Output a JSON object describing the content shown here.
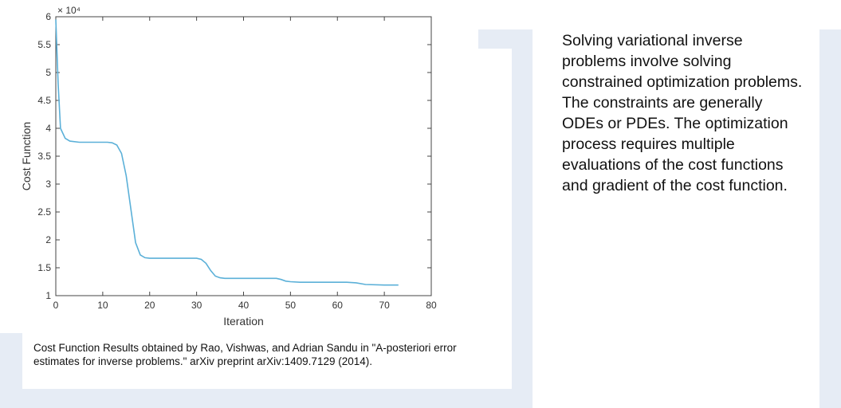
{
  "caption": "Cost Function Results obtained by Rao, Vishwas, and Adrian Sandu in \"A-posteriori error estimates for inverse problems.\" arXiv preprint arXiv:1409.7129 (2014).",
  "side_text": "Solving variational inverse problems involve solving constrained optimization problems. The constraints are generally ODEs or PDEs. The optimization process requires multiple evaluations of the cost functions and gradient of the cost function.",
  "colors": {
    "line": "#5bb0d8",
    "decoration": "#e6ecf5"
  },
  "chart_data": {
    "type": "line",
    "xlabel": "Iteration",
    "ylabel": "Cost Function",
    "exponent_label": "× 10⁴",
    "xlim": [
      0,
      80
    ],
    "ylim": [
      1,
      6
    ],
    "xticks": [
      0,
      10,
      20,
      30,
      40,
      50,
      60,
      70,
      80
    ],
    "yticks": [
      1,
      1.5,
      2,
      2.5,
      3,
      3.5,
      4,
      4.5,
      5,
      5.5,
      6
    ],
    "grid": false,
    "series": [
      {
        "x": [
          0,
          0.5,
          1,
          2,
          3,
          5,
          8,
          11,
          12,
          13,
          14,
          15,
          16,
          17,
          18,
          19,
          20,
          22,
          25,
          28,
          30,
          31,
          32,
          33,
          34,
          35,
          36,
          40,
          45,
          47,
          48,
          49,
          50,
          52,
          55,
          60,
          62,
          64,
          66,
          70,
          73
        ],
        "y": [
          5.95,
          4.8,
          4.0,
          3.82,
          3.77,
          3.75,
          3.75,
          3.75,
          3.74,
          3.7,
          3.55,
          3.15,
          2.55,
          1.95,
          1.73,
          1.68,
          1.67,
          1.67,
          1.67,
          1.67,
          1.67,
          1.65,
          1.58,
          1.45,
          1.35,
          1.32,
          1.31,
          1.31,
          1.31,
          1.31,
          1.29,
          1.26,
          1.25,
          1.24,
          1.24,
          1.24,
          1.24,
          1.23,
          1.2,
          1.19,
          1.19
        ]
      }
    ]
  }
}
